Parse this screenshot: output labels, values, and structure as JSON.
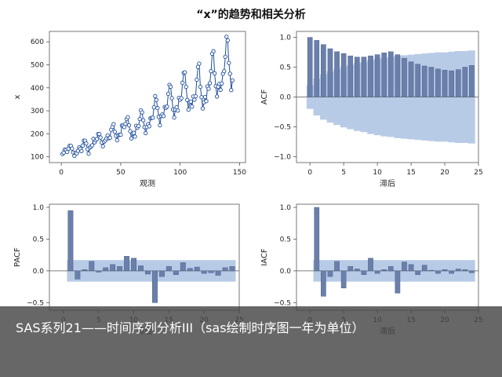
{
  "title": "“x”的趋势和相关分析",
  "caption": "SAS系列21——时间序列分析III（sas绘制时序图一年为单位）",
  "colors": {
    "line": "#1f4e9c",
    "marker_fill": "#ffffff",
    "bar": "#6a80aa",
    "band": "#b8cbe6",
    "frame": "#777777"
  },
  "chart_data": [
    {
      "id": "series",
      "type": "line",
      "xlabel": "观测",
      "ylabel": "x",
      "xlim": [
        -10,
        155
      ],
      "ylim": [
        75,
        645
      ],
      "xticks": [
        0,
        50,
        100,
        150
      ],
      "yticks": [
        100,
        200,
        300,
        400,
        500,
        600
      ],
      "grid": false,
      "x_start": 1,
      "values": [
        112,
        118,
        132,
        129,
        121,
        135,
        148,
        148,
        136,
        119,
        104,
        118,
        115,
        126,
        141,
        135,
        125,
        149,
        170,
        170,
        158,
        133,
        114,
        140,
        145,
        150,
        178,
        163,
        172,
        178,
        199,
        199,
        184,
        162,
        146,
        166,
        171,
        180,
        193,
        181,
        183,
        218,
        230,
        242,
        209,
        191,
        172,
        194,
        196,
        196,
        236,
        235,
        229,
        243,
        264,
        272,
        237,
        211,
        180,
        201,
        204,
        188,
        235,
        227,
        234,
        264,
        302,
        293,
        259,
        229,
        203,
        229,
        242,
        233,
        267,
        269,
        270,
        315,
        364,
        347,
        312,
        274,
        237,
        278,
        284,
        277,
        317,
        313,
        318,
        374,
        413,
        405,
        355,
        306,
        271,
        306,
        315,
        301,
        356,
        348,
        355,
        422,
        465,
        467,
        404,
        347,
        305,
        336,
        340,
        318,
        362,
        348,
        363,
        435,
        491,
        505,
        404,
        359,
        310,
        337,
        360,
        342,
        406,
        396,
        420,
        472,
        548,
        559,
        463,
        407,
        362,
        405,
        417,
        391,
        419,
        461,
        472,
        535,
        622,
        606,
        508,
        461,
        390,
        432
      ]
    },
    {
      "id": "acf",
      "type": "bar",
      "xlabel": "滞后",
      "ylabel": "ACF",
      "xlim": [
        -2,
        25
      ],
      "ylim": [
        -1.1,
        1.1
      ],
      "xticks": [
        0,
        5,
        10,
        15,
        20,
        25
      ],
      "yticks": [
        -1.0,
        -0.5,
        0.0,
        0.5,
        1.0
      ],
      "yticklabels": [
        "−1.0",
        "−0.5",
        "0.0",
        "0.5",
        "1.0"
      ],
      "lags": [
        0,
        1,
        2,
        3,
        4,
        5,
        6,
        7,
        8,
        9,
        10,
        11,
        12,
        13,
        14,
        15,
        16,
        17,
        18,
        19,
        20,
        21,
        22,
        23,
        24
      ],
      "values": [
        1.0,
        0.95,
        0.88,
        0.81,
        0.76,
        0.73,
        0.69,
        0.67,
        0.67,
        0.69,
        0.71,
        0.74,
        0.76,
        0.71,
        0.65,
        0.59,
        0.55,
        0.52,
        0.5,
        0.47,
        0.45,
        0.44,
        0.46,
        0.5,
        0.53
      ],
      "band": [
        0.2,
        0.31,
        0.38,
        0.43,
        0.47,
        0.51,
        0.54,
        0.57,
        0.59,
        0.62,
        0.64,
        0.66,
        0.67,
        0.69,
        0.7,
        0.71,
        0.72,
        0.73,
        0.74,
        0.75,
        0.75,
        0.76,
        0.77,
        0.77,
        0.78
      ]
    },
    {
      "id": "pacf",
      "type": "bar",
      "xlabel": "滞后",
      "ylabel": "PACF",
      "xlim": [
        -2,
        25
      ],
      "ylim": [
        -0.62,
        1.05
      ],
      "xticks": [
        0,
        5,
        10,
        15,
        20,
        25
      ],
      "yticks": [
        -0.5,
        0.0,
        0.5,
        1.0
      ],
      "yticklabels": [
        "−0.5",
        "0.0",
        "0.5",
        "1.0"
      ],
      "lags": [
        1,
        2,
        3,
        4,
        5,
        6,
        7,
        8,
        9,
        10,
        11,
        12,
        13,
        14,
        15,
        16,
        17,
        18,
        19,
        20,
        21,
        22,
        23,
        24
      ],
      "values": [
        0.95,
        -0.13,
        0.02,
        0.15,
        -0.02,
        0.05,
        0.1,
        0.07,
        0.23,
        0.2,
        0.08,
        -0.05,
        -0.5,
        -0.09,
        0.07,
        -0.06,
        0.13,
        0.04,
        0.06,
        -0.04,
        -0.03,
        -0.07,
        0.05,
        0.07
      ],
      "band": 0.17
    },
    {
      "id": "iacf",
      "type": "bar",
      "xlabel": "滞后",
      "ylabel": "IACF",
      "xlim": [
        -2,
        25
      ],
      "ylim": [
        -0.62,
        1.05
      ],
      "xticks": [
        0,
        5,
        10,
        15,
        20,
        25
      ],
      "yticks": [
        -0.5,
        0.0,
        0.5,
        1.0
      ],
      "yticklabels": [
        "−0.5",
        "0.0",
        "0.5",
        "1.0"
      ],
      "lags": [
        1,
        2,
        3,
        4,
        5,
        6,
        7,
        8,
        9,
        10,
        11,
        12,
        13,
        14,
        15,
        16,
        17,
        18,
        19,
        20,
        21,
        22,
        23,
        24
      ],
      "values": [
        1.0,
        -0.4,
        -0.09,
        0.15,
        -0.27,
        0.07,
        0.03,
        -0.06,
        0.2,
        -0.04,
        0.02,
        0.07,
        -0.35,
        0.14,
        0.1,
        -0.06,
        0.09,
        0.01,
        -0.04,
        0.02,
        -0.04,
        0.03,
        0.02,
        -0.03
      ],
      "band": 0.17
    }
  ]
}
